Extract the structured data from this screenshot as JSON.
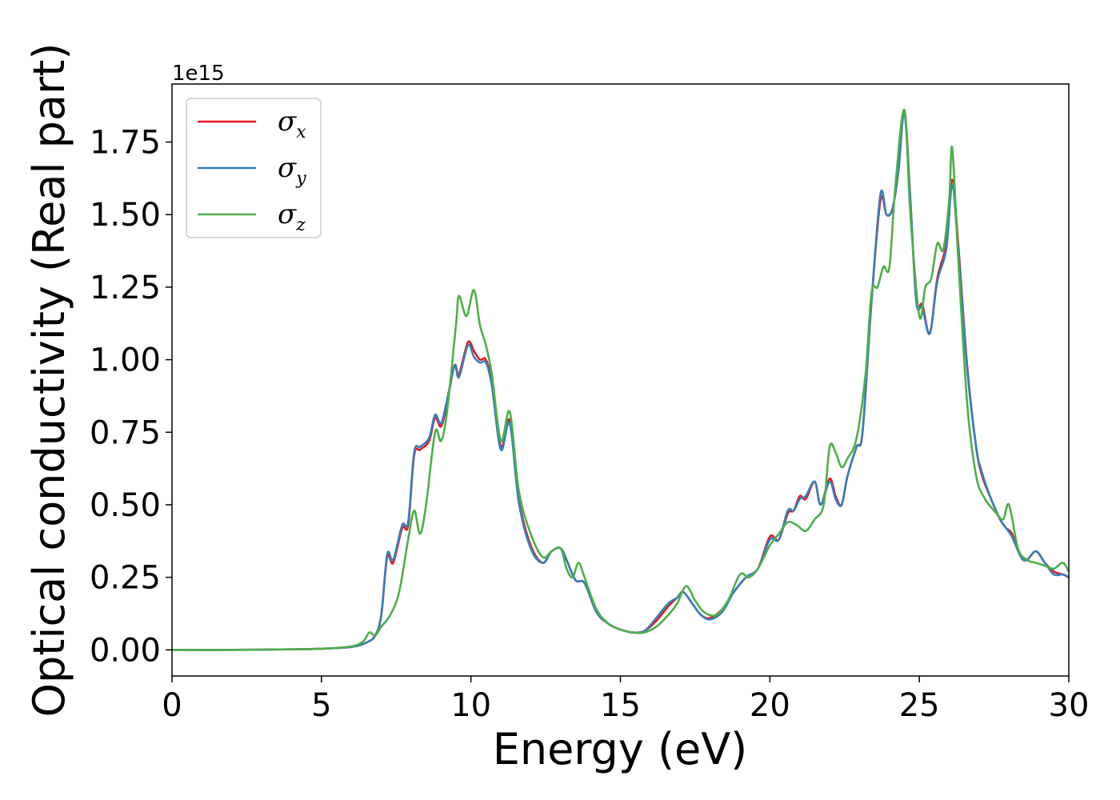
{
  "chart_data": {
    "type": "line",
    "title": "",
    "xlabel": "Energy (eV)",
    "ylabel": "Optical conductivity (Real part)",
    "y_offset_label": "1e15",
    "xlim": [
      0,
      30
    ],
    "ylim": [
      -0.09,
      1.95
    ],
    "x_ticks": [
      0,
      5,
      10,
      15,
      20,
      25,
      30
    ],
    "x_tick_labels": [
      "0",
      "5",
      "10",
      "15",
      "20",
      "25",
      "30"
    ],
    "y_ticks": [
      0.0,
      0.25,
      0.5,
      0.75,
      1.0,
      1.25,
      1.5,
      1.75
    ],
    "y_tick_labels": [
      "0.00",
      "0.25",
      "0.50",
      "0.75",
      "1.00",
      "1.25",
      "1.50",
      "1.75"
    ],
    "grid": false,
    "legend_position": "top-left",
    "series": [
      {
        "name": "σ",
        "subscript": "x",
        "color": "#e41a1c",
        "points": [
          [
            0,
            0
          ],
          [
            2,
            0
          ],
          [
            4,
            0.002
          ],
          [
            5,
            0.004
          ],
          [
            6,
            0.01
          ],
          [
            6.5,
            0.025
          ],
          [
            6.8,
            0.05
          ],
          [
            7.0,
            0.12
          ],
          [
            7.2,
            0.32
          ],
          [
            7.4,
            0.3
          ],
          [
            7.7,
            0.42
          ],
          [
            7.9,
            0.43
          ],
          [
            8.1,
            0.67
          ],
          [
            8.3,
            0.69
          ],
          [
            8.6,
            0.72
          ],
          [
            8.8,
            0.8
          ],
          [
            9.0,
            0.77
          ],
          [
            9.2,
            0.85
          ],
          [
            9.45,
            0.98
          ],
          [
            9.6,
            0.95
          ],
          [
            9.9,
            1.06
          ],
          [
            10.1,
            1.03
          ],
          [
            10.3,
            1.0
          ],
          [
            10.5,
            1.0
          ],
          [
            10.7,
            0.92
          ],
          [
            11.0,
            0.7
          ],
          [
            11.3,
            0.79
          ],
          [
            11.6,
            0.52
          ],
          [
            12.0,
            0.36
          ],
          [
            12.4,
            0.3
          ],
          [
            12.7,
            0.34
          ],
          [
            13.0,
            0.35
          ],
          [
            13.2,
            0.31
          ],
          [
            13.5,
            0.24
          ],
          [
            13.8,
            0.23
          ],
          [
            14.2,
            0.13
          ],
          [
            14.6,
            0.09
          ],
          [
            15.0,
            0.07
          ],
          [
            15.4,
            0.06
          ],
          [
            15.8,
            0.065
          ],
          [
            16.2,
            0.1
          ],
          [
            16.6,
            0.15
          ],
          [
            16.9,
            0.18
          ],
          [
            17.1,
            0.2
          ],
          [
            17.4,
            0.16
          ],
          [
            17.7,
            0.12
          ],
          [
            18.0,
            0.11
          ],
          [
            18.4,
            0.14
          ],
          [
            18.8,
            0.2
          ],
          [
            19.2,
            0.25
          ],
          [
            19.6,
            0.28
          ],
          [
            20.0,
            0.39
          ],
          [
            20.3,
            0.38
          ],
          [
            20.6,
            0.47
          ],
          [
            20.8,
            0.48
          ],
          [
            21.0,
            0.53
          ],
          [
            21.2,
            0.52
          ],
          [
            21.5,
            0.58
          ],
          [
            21.7,
            0.5
          ],
          [
            22.0,
            0.59
          ],
          [
            22.2,
            0.53
          ],
          [
            22.4,
            0.5
          ],
          [
            22.6,
            0.6
          ],
          [
            22.9,
            0.7
          ],
          [
            23.1,
            0.75
          ],
          [
            23.4,
            1.2
          ],
          [
            23.7,
            1.55
          ],
          [
            23.9,
            1.5
          ],
          [
            24.1,
            1.52
          ],
          [
            24.3,
            1.65
          ],
          [
            24.5,
            1.86
          ],
          [
            24.7,
            1.55
          ],
          [
            24.9,
            1.2
          ],
          [
            25.1,
            1.19
          ],
          [
            25.35,
            1.09
          ],
          [
            25.6,
            1.28
          ],
          [
            25.9,
            1.4
          ],
          [
            26.1,
            1.62
          ],
          [
            26.3,
            1.4
          ],
          [
            26.6,
            0.98
          ],
          [
            26.9,
            0.7
          ],
          [
            27.1,
            0.6
          ],
          [
            27.4,
            0.52
          ],
          [
            27.7,
            0.45
          ],
          [
            27.9,
            0.42
          ],
          [
            28.1,
            0.4
          ],
          [
            28.4,
            0.32
          ],
          [
            28.6,
            0.31
          ],
          [
            28.9,
            0.34
          ],
          [
            29.2,
            0.3
          ],
          [
            29.5,
            0.27
          ],
          [
            29.8,
            0.26
          ],
          [
            30.0,
            0.25
          ]
        ]
      },
      {
        "name": "σ",
        "subscript": "y",
        "color": "#377eb8",
        "points": [
          [
            0,
            0
          ],
          [
            2,
            0
          ],
          [
            4,
            0.002
          ],
          [
            5,
            0.004
          ],
          [
            6,
            0.01
          ],
          [
            6.5,
            0.025
          ],
          [
            6.8,
            0.05
          ],
          [
            7.0,
            0.12
          ],
          [
            7.2,
            0.33
          ],
          [
            7.4,
            0.31
          ],
          [
            7.7,
            0.43
          ],
          [
            7.9,
            0.44
          ],
          [
            8.1,
            0.68
          ],
          [
            8.3,
            0.7
          ],
          [
            8.6,
            0.73
          ],
          [
            8.8,
            0.81
          ],
          [
            9.0,
            0.78
          ],
          [
            9.2,
            0.86
          ],
          [
            9.45,
            0.98
          ],
          [
            9.6,
            0.94
          ],
          [
            9.9,
            1.05
          ],
          [
            10.1,
            1.01
          ],
          [
            10.3,
            0.99
          ],
          [
            10.5,
            0.99
          ],
          [
            10.7,
            0.91
          ],
          [
            11.0,
            0.69
          ],
          [
            11.3,
            0.78
          ],
          [
            11.6,
            0.51
          ],
          [
            12.0,
            0.35
          ],
          [
            12.4,
            0.3
          ],
          [
            12.7,
            0.34
          ],
          [
            13.0,
            0.35
          ],
          [
            13.2,
            0.31
          ],
          [
            13.5,
            0.24
          ],
          [
            13.8,
            0.23
          ],
          [
            14.2,
            0.13
          ],
          [
            14.6,
            0.09
          ],
          [
            15.0,
            0.07
          ],
          [
            15.4,
            0.06
          ],
          [
            15.8,
            0.065
          ],
          [
            16.2,
            0.11
          ],
          [
            16.6,
            0.16
          ],
          [
            16.9,
            0.18
          ],
          [
            17.1,
            0.2
          ],
          [
            17.4,
            0.16
          ],
          [
            17.7,
            0.12
          ],
          [
            18.0,
            0.105
          ],
          [
            18.4,
            0.13
          ],
          [
            18.8,
            0.2
          ],
          [
            19.2,
            0.25
          ],
          [
            19.6,
            0.28
          ],
          [
            20.0,
            0.38
          ],
          [
            20.3,
            0.38
          ],
          [
            20.6,
            0.48
          ],
          [
            20.8,
            0.48
          ],
          [
            21.0,
            0.52
          ],
          [
            21.2,
            0.53
          ],
          [
            21.5,
            0.58
          ],
          [
            21.7,
            0.5
          ],
          [
            22.0,
            0.58
          ],
          [
            22.2,
            0.52
          ],
          [
            22.4,
            0.5
          ],
          [
            22.6,
            0.6
          ],
          [
            22.9,
            0.7
          ],
          [
            23.1,
            0.75
          ],
          [
            23.4,
            1.2
          ],
          [
            23.7,
            1.57
          ],
          [
            23.9,
            1.5
          ],
          [
            24.1,
            1.52
          ],
          [
            24.3,
            1.65
          ],
          [
            24.5,
            1.85
          ],
          [
            24.7,
            1.55
          ],
          [
            24.9,
            1.2
          ],
          [
            25.1,
            1.18
          ],
          [
            25.35,
            1.09
          ],
          [
            25.6,
            1.27
          ],
          [
            25.9,
            1.38
          ],
          [
            26.1,
            1.6
          ],
          [
            26.3,
            1.38
          ],
          [
            26.6,
            0.97
          ],
          [
            26.9,
            0.7
          ],
          [
            27.1,
            0.61
          ],
          [
            27.4,
            0.52
          ],
          [
            27.7,
            0.45
          ],
          [
            27.9,
            0.42
          ],
          [
            28.1,
            0.39
          ],
          [
            28.4,
            0.32
          ],
          [
            28.6,
            0.31
          ],
          [
            28.9,
            0.34
          ],
          [
            29.2,
            0.3
          ],
          [
            29.5,
            0.26
          ],
          [
            29.8,
            0.26
          ],
          [
            30.0,
            0.25
          ]
        ]
      },
      {
        "name": "σ",
        "subscript": "z",
        "color": "#4daf4a",
        "points": [
          [
            0,
            0
          ],
          [
            2,
            0
          ],
          [
            4,
            0.002
          ],
          [
            5,
            0.004
          ],
          [
            6,
            0.012
          ],
          [
            6.4,
            0.03
          ],
          [
            6.6,
            0.06
          ],
          [
            6.8,
            0.05
          ],
          [
            7.0,
            0.08
          ],
          [
            7.3,
            0.12
          ],
          [
            7.6,
            0.2
          ],
          [
            7.9,
            0.38
          ],
          [
            8.1,
            0.48
          ],
          [
            8.3,
            0.4
          ],
          [
            8.5,
            0.5
          ],
          [
            8.8,
            0.75
          ],
          [
            9.0,
            0.72
          ],
          [
            9.2,
            0.82
          ],
          [
            9.5,
            1.12
          ],
          [
            9.6,
            1.22
          ],
          [
            9.85,
            1.15
          ],
          [
            10.1,
            1.24
          ],
          [
            10.3,
            1.12
          ],
          [
            10.5,
            1.05
          ],
          [
            10.7,
            0.95
          ],
          [
            11.0,
            0.72
          ],
          [
            11.3,
            0.82
          ],
          [
            11.6,
            0.55
          ],
          [
            12.0,
            0.4
          ],
          [
            12.4,
            0.32
          ],
          [
            12.7,
            0.34
          ],
          [
            13.0,
            0.35
          ],
          [
            13.2,
            0.28
          ],
          [
            13.4,
            0.25
          ],
          [
            13.6,
            0.3
          ],
          [
            13.8,
            0.25
          ],
          [
            14.2,
            0.14
          ],
          [
            14.6,
            0.09
          ],
          [
            15.0,
            0.07
          ],
          [
            15.4,
            0.06
          ],
          [
            15.8,
            0.06
          ],
          [
            16.2,
            0.08
          ],
          [
            16.6,
            0.12
          ],
          [
            16.9,
            0.16
          ],
          [
            17.2,
            0.22
          ],
          [
            17.5,
            0.17
          ],
          [
            17.8,
            0.13
          ],
          [
            18.2,
            0.12
          ],
          [
            18.6,
            0.17
          ],
          [
            19.0,
            0.26
          ],
          [
            19.3,
            0.25
          ],
          [
            19.6,
            0.28
          ],
          [
            20.0,
            0.36
          ],
          [
            20.3,
            0.4
          ],
          [
            20.6,
            0.44
          ],
          [
            20.9,
            0.43
          ],
          [
            21.2,
            0.41
          ],
          [
            21.5,
            0.45
          ],
          [
            21.8,
            0.5
          ],
          [
            22.0,
            0.7
          ],
          [
            22.2,
            0.68
          ],
          [
            22.4,
            0.63
          ],
          [
            22.6,
            0.66
          ],
          [
            22.9,
            0.73
          ],
          [
            23.2,
            0.95
          ],
          [
            23.4,
            1.23
          ],
          [
            23.6,
            1.25
          ],
          [
            23.8,
            1.32
          ],
          [
            24.0,
            1.32
          ],
          [
            24.2,
            1.6
          ],
          [
            24.5,
            1.86
          ],
          [
            24.7,
            1.5
          ],
          [
            25.0,
            1.15
          ],
          [
            25.2,
            1.25
          ],
          [
            25.4,
            1.28
          ],
          [
            25.6,
            1.4
          ],
          [
            25.8,
            1.38
          ],
          [
            26.0,
            1.55
          ],
          [
            26.1,
            1.73
          ],
          [
            26.3,
            1.35
          ],
          [
            26.6,
            0.85
          ],
          [
            26.9,
            0.6
          ],
          [
            27.2,
            0.52
          ],
          [
            27.5,
            0.48
          ],
          [
            27.8,
            0.45
          ],
          [
            28.0,
            0.5
          ],
          [
            28.3,
            0.35
          ],
          [
            28.6,
            0.31
          ],
          [
            28.9,
            0.3
          ],
          [
            29.2,
            0.29
          ],
          [
            29.5,
            0.28
          ],
          [
            29.8,
            0.3
          ],
          [
            30.0,
            0.27
          ]
        ]
      }
    ]
  }
}
